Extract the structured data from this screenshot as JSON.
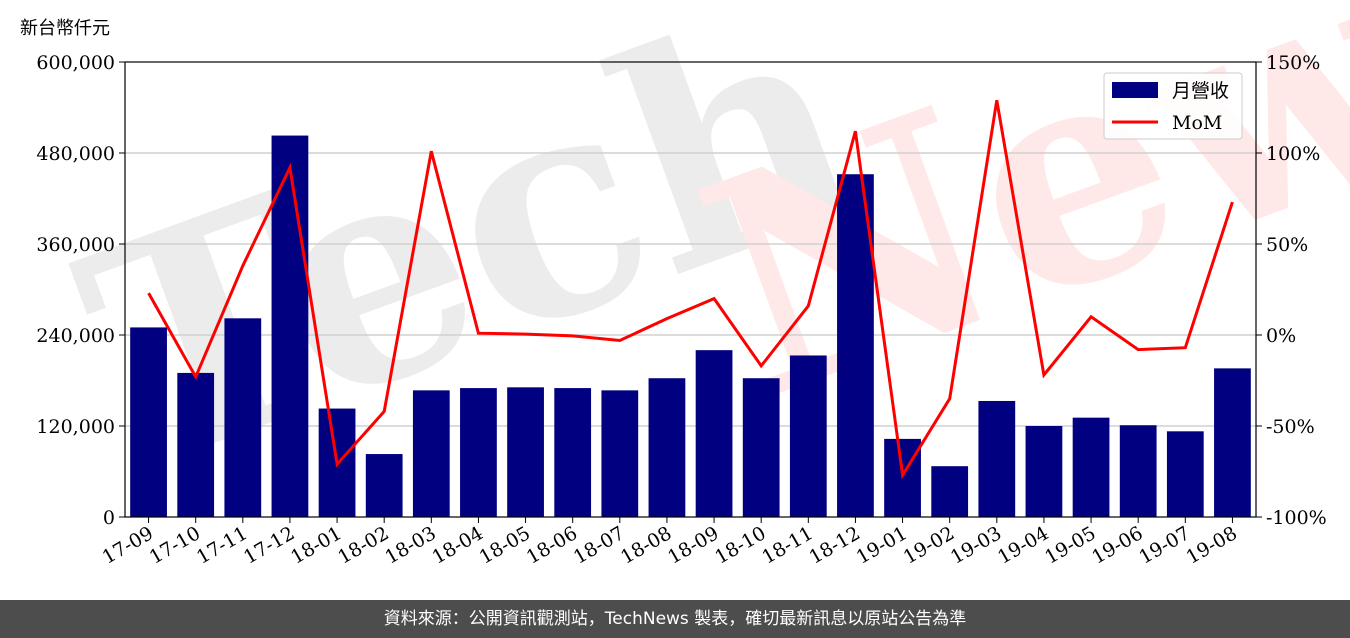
{
  "chart_data": {
    "type": "bar",
    "categories": [
      "17-09",
      "17-10",
      "17-11",
      "17-12",
      "18-01",
      "18-02",
      "18-03",
      "18-04",
      "18-05",
      "18-06",
      "18-07",
      "18-08",
      "18-09",
      "18-10",
      "18-11",
      "18-12",
      "19-01",
      "19-02",
      "19-03",
      "19-04",
      "19-05",
      "19-06",
      "19-07",
      "19-08"
    ],
    "series": [
      {
        "name": "月營收",
        "axis": "left",
        "kind": "bar",
        "color": "#000080",
        "values": [
          250000,
          190000,
          262000,
          503000,
          143000,
          83000,
          167000,
          170000,
          171000,
          170000,
          167000,
          183000,
          220000,
          183000,
          213000,
          452000,
          103000,
          67000,
          153000,
          120000,
          131000,
          121000,
          113000,
          196000
        ]
      },
      {
        "name": "MoM",
        "axis": "right",
        "kind": "line",
        "color": "#ff0000",
        "values": [
          23,
          -23,
          38,
          92,
          -71,
          -42,
          101,
          1,
          0.5,
          -0.5,
          -3,
          9,
          20,
          -17,
          16,
          112,
          -77,
          -35,
          129,
          -22,
          10,
          -8,
          -7,
          73
        ]
      }
    ],
    "ylabel": "新台幣仟元",
    "ylim": [
      0,
      600000
    ],
    "y_ticks": [
      "0",
      "120,000",
      "240,000",
      "360,000",
      "480,000",
      "600,000"
    ],
    "y2lim": [
      -100,
      150
    ],
    "y2_ticks": [
      "-100%",
      "-50%",
      "0%",
      "50%",
      "100%",
      "150%"
    ],
    "grid": "horizontal",
    "legend_position": "top-right"
  },
  "watermark": "TechNews",
  "footer": "資料來源：公開資訊觀測站，TechNews 製表，確切最新訊息以原站公告為準"
}
